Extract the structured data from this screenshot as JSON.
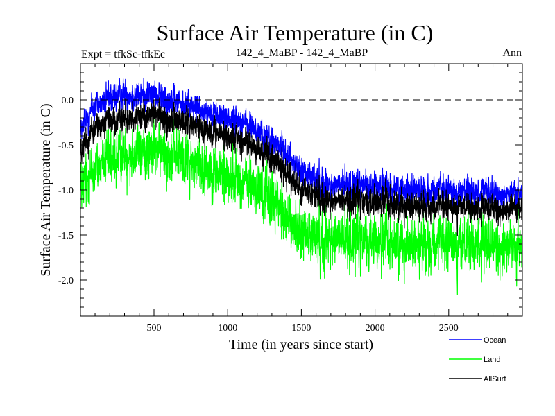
{
  "chart_data": {
    "type": "line",
    "title": "Surface Air Temperature (in C)",
    "subtitle_left": "Expt = tfkSc-tfkEc",
    "subtitle_center": "142_4_MaBP - 142_4_MaBP",
    "subtitle_right": "Ann",
    "xlabel": "Time (in years since start)",
    "ylabel": "Surface Air Temperature (in C)",
    "xlim": [
      1,
      3000
    ],
    "ylim": [
      -2.4,
      0.4
    ],
    "x_ticks": [
      500,
      1000,
      1500,
      2000,
      2500
    ],
    "x_tick_labels": [
      "500",
      "1000",
      "1500",
      "2000",
      "2500"
    ],
    "y_ticks": [
      0.0,
      -0.5,
      -1.0,
      -1.5,
      -2.0
    ],
    "y_tick_labels": [
      "0.0",
      "-0.5",
      "-1.0",
      "-1.5",
      "-2.0"
    ],
    "reference_line": {
      "y": 0.0,
      "style": "dashed"
    },
    "series": [
      {
        "name": "Ocean",
        "color": "#0000ff",
        "noise": 0.13,
        "trend_x": [
          0,
          100,
          300,
          500,
          700,
          900,
          1100,
          1300,
          1400,
          1500,
          1700,
          2000,
          2300,
          2600,
          3000
        ],
        "trend_y": [
          -0.35,
          -0.05,
          0.05,
          0.05,
          -0.05,
          -0.15,
          -0.25,
          -0.45,
          -0.6,
          -0.8,
          -0.95,
          -0.95,
          -1.0,
          -1.02,
          -1.05
        ]
      },
      {
        "name": "Land",
        "color": "#00ff00",
        "noise": 0.25,
        "trend_x": [
          0,
          100,
          300,
          500,
          700,
          900,
          1100,
          1300,
          1400,
          1500,
          1700,
          2000,
          2300,
          2600,
          3000
        ],
        "trend_y": [
          -1.0,
          -0.75,
          -0.6,
          -0.55,
          -0.65,
          -0.8,
          -0.9,
          -1.1,
          -1.3,
          -1.5,
          -1.55,
          -1.55,
          -1.6,
          -1.6,
          -1.65
        ]
      },
      {
        "name": "AllSurf",
        "color": "#000000",
        "noise": 0.13,
        "trend_x": [
          0,
          100,
          300,
          500,
          700,
          900,
          1100,
          1300,
          1400,
          1500,
          1700,
          2000,
          2300,
          2600,
          3000
        ],
        "trend_y": [
          -0.6,
          -0.3,
          -0.2,
          -0.17,
          -0.25,
          -0.35,
          -0.45,
          -0.65,
          -0.8,
          -1.0,
          -1.12,
          -1.12,
          -1.18,
          -1.2,
          -1.22
        ]
      }
    ],
    "legend": [
      {
        "label": "Ocean",
        "color": "#0000ff"
      },
      {
        "label": "Land",
        "color": "#00ff00"
      },
      {
        "label": "AllSurf",
        "color": "#000000"
      }
    ],
    "legend_position": "bottom-right"
  }
}
